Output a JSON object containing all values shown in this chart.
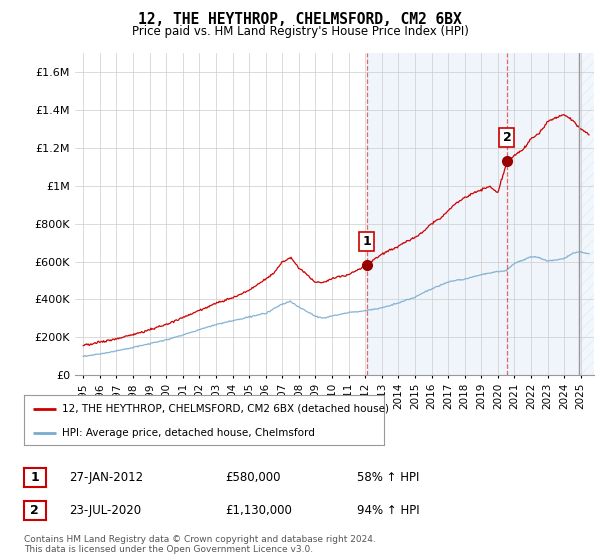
{
  "title": "12, THE HEYTHROP, CHELMSFORD, CM2 6BX",
  "subtitle": "Price paid vs. HM Land Registry's House Price Index (HPI)",
  "legend_line1": "12, THE HEYTHROP, CHELMSFORD, CM2 6BX (detached house)",
  "legend_line2": "HPI: Average price, detached house, Chelmsford",
  "footnote1": "Contains HM Land Registry data © Crown copyright and database right 2024.",
  "footnote2": "This data is licensed under the Open Government Licence v3.0.",
  "transaction1_date": "27-JAN-2012",
  "transaction1_price": "£580,000",
  "transaction1_hpi": "58% ↑ HPI",
  "transaction2_date": "23-JUL-2020",
  "transaction2_price": "£1,130,000",
  "transaction2_hpi": "94% ↑ HPI",
  "red_line_color": "#cc0000",
  "blue_line_color": "#7aabcf",
  "background_color": "#ffffff",
  "plot_bg_color": "#ffffff",
  "grid_color": "#cccccc",
  "shade_color": "#ddeeff",
  "marker1_x": 2012.08,
  "marker1_y": 580000,
  "marker2_x": 2020.55,
  "marker2_y": 1130000,
  "vline1_x": 2012.08,
  "vline2_x": 2020.55,
  "ylim_min": 0,
  "ylim_max": 1700000,
  "xlim_min": 1994.5,
  "xlim_max": 2025.8,
  "yticks": [
    0,
    200000,
    400000,
    600000,
    800000,
    1000000,
    1200000,
    1400000,
    1600000
  ],
  "ytick_labels": [
    "£0",
    "£200K",
    "£400K",
    "£600K",
    "£800K",
    "£1M",
    "£1.2M",
    "£1.4M",
    "£1.6M"
  ],
  "xticks": [
    1995,
    1996,
    1997,
    1998,
    1999,
    2000,
    2001,
    2002,
    2003,
    2004,
    2005,
    2006,
    2007,
    2008,
    2009,
    2010,
    2011,
    2012,
    2013,
    2014,
    2015,
    2016,
    2017,
    2018,
    2019,
    2020,
    2021,
    2022,
    2023,
    2024,
    2025
  ]
}
